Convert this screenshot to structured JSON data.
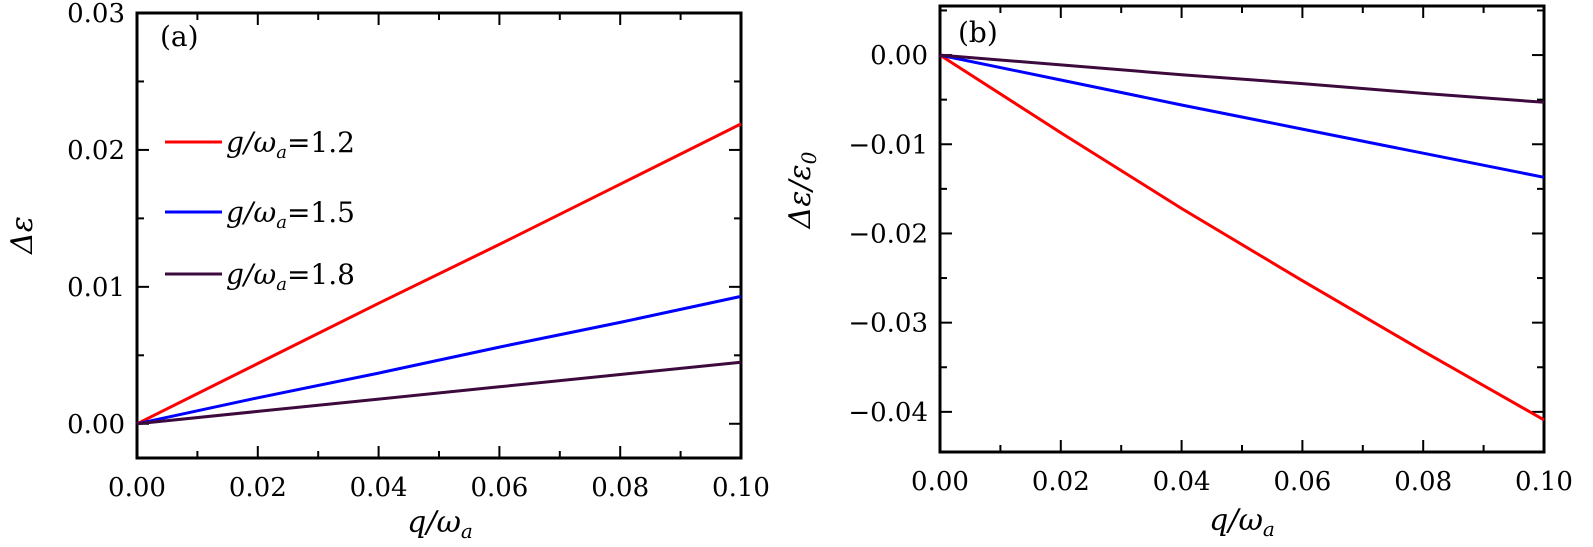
{
  "chart_data": [
    {
      "type": "line",
      "panel_label": "(a)",
      "xlabel": "q/ω_a",
      "ylabel": "Δε",
      "xlim": [
        0,
        0.1
      ],
      "ylim": [
        -0.0025,
        0.03
      ],
      "xticks": [
        0.0,
        0.02,
        0.04,
        0.06,
        0.08,
        0.1
      ],
      "xtick_labels": [
        "0.00",
        "0.02",
        "0.04",
        "0.06",
        "0.08",
        "0.10"
      ],
      "yticks": [
        0.0,
        0.01,
        0.02,
        0.03
      ],
      "ytick_labels": [
        "0.00",
        "0.01",
        "0.02",
        "0.03"
      ],
      "legend": {
        "position": "left",
        "entries": [
          "g/ω_a=1.2",
          "g/ω_a=1.5",
          "g/ω_a=1.8"
        ]
      },
      "series": [
        {
          "name": "g/ω_a=1.2",
          "color": "#ff0000",
          "x": [
            0,
            0.02,
            0.04,
            0.06,
            0.08,
            0.1
          ],
          "y": [
            0,
            0.0044,
            0.0088,
            0.0131,
            0.0175,
            0.0219
          ]
        },
        {
          "name": "g/ω_a=1.5",
          "color": "#0000ff",
          "x": [
            0,
            0.02,
            0.04,
            0.06,
            0.08,
            0.1
          ],
          "y": [
            0,
            0.0019,
            0.0037,
            0.0056,
            0.0074,
            0.0093
          ]
        },
        {
          "name": "g/ω_a=1.8",
          "color": "#3d0a3d",
          "x": [
            0,
            0.02,
            0.04,
            0.06,
            0.08,
            0.1
          ],
          "y": [
            0,
            0.0009,
            0.0018,
            0.0027,
            0.0036,
            0.0045
          ]
        }
      ]
    },
    {
      "type": "line",
      "panel_label": "(b)",
      "xlabel": "q/ω_a",
      "ylabel": "Δε/ε_0",
      "xlim": [
        0,
        0.1
      ],
      "ylim": [
        -0.0445,
        0.0055
      ],
      "xticks": [
        0.0,
        0.02,
        0.04,
        0.06,
        0.08,
        0.1
      ],
      "xtick_labels": [
        "0.00",
        "0.02",
        "0.04",
        "0.06",
        "0.08",
        "0.10"
      ],
      "yticks": [
        0.0,
        -0.01,
        -0.02,
        -0.03,
        -0.04
      ],
      "ytick_labels": [
        "0.00",
        "−0.01",
        "−0.02",
        "−0.03",
        "−0.04"
      ],
      "series": [
        {
          "name": "g/ω_a=1.2",
          "color": "#ff0000",
          "x": [
            0,
            0.02,
            0.04,
            0.06,
            0.08,
            0.1
          ],
          "y": [
            0,
            -0.0087,
            -0.0172,
            -0.0253,
            -0.0332,
            -0.0409
          ]
        },
        {
          "name": "g/ω_a=1.5",
          "color": "#0000ff",
          "x": [
            0,
            0.02,
            0.04,
            0.06,
            0.08,
            0.1
          ],
          "y": [
            0,
            -0.0028,
            -0.0056,
            -0.0083,
            -0.011,
            -0.0137
          ]
        },
        {
          "name": "g/ω_a=1.8",
          "color": "#3d0a3d",
          "x": [
            0,
            0.02,
            0.04,
            0.06,
            0.08,
            0.1
          ],
          "y": [
            0,
            -0.0011,
            -0.0022,
            -0.0032,
            -0.0043,
            -0.0053
          ]
        }
      ]
    }
  ]
}
